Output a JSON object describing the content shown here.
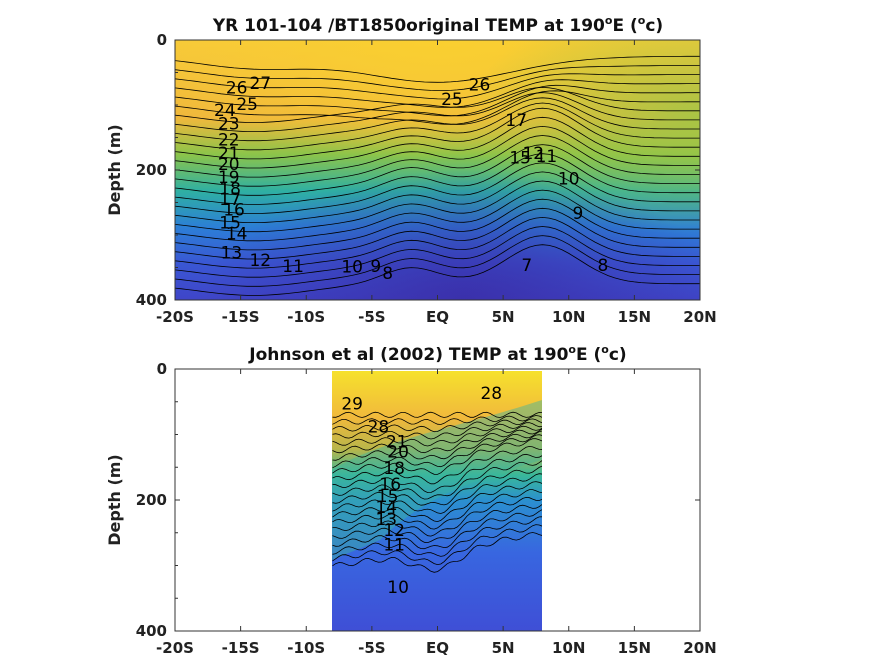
{
  "chart_data": [
    {
      "type": "contour",
      "title_pre": "YR 101-104 /BT1850original TEMP at 190",
      "title_sup": "o",
      "title_mid": "E (",
      "title_sup2": "o",
      "title_post": "c)",
      "xlabel": "",
      "ylabel": "Depth (m)",
      "xlim": [
        -20,
        20
      ],
      "ylim": [
        0,
        400
      ],
      "y_reversed": true,
      "x_ticks": [
        "-20S",
        "-15S",
        "-10S",
        "-5S",
        "EQ",
        "5N",
        "10N",
        "15N",
        "20N"
      ],
      "y_ticks": [
        "0",
        "200",
        "400"
      ],
      "contour_labels": [
        {
          "text": "27",
          "x": -13.5,
          "depth": 75
        },
        {
          "text": "26",
          "x": -15.3,
          "depth": 82
        },
        {
          "text": "25",
          "x": -14.5,
          "depth": 108
        },
        {
          "text": "24",
          "x": -16.2,
          "depth": 117
        },
        {
          "text": "23",
          "x": -15.9,
          "depth": 138
        },
        {
          "text": "22",
          "x": -15.9,
          "depth": 162
        },
        {
          "text": "21",
          "x": -15.9,
          "depth": 183
        },
        {
          "text": "20",
          "x": -15.9,
          "depth": 200
        },
        {
          "text": "19",
          "x": -15.9,
          "depth": 220
        },
        {
          "text": "18",
          "x": -15.8,
          "depth": 238
        },
        {
          "text": "17",
          "x": -15.8,
          "depth": 254
        },
        {
          "text": "16",
          "x": -15.5,
          "depth": 270
        },
        {
          "text": "15",
          "x": -15.8,
          "depth": 290
        },
        {
          "text": "14",
          "x": -15.3,
          "depth": 307
        },
        {
          "text": "13",
          "x": -15.7,
          "depth": 336
        },
        {
          "text": "12",
          "x": -13.5,
          "depth": 348
        },
        {
          "text": "11",
          "x": -11.0,
          "depth": 357
        },
        {
          "text": "10",
          "x": -6.5,
          "depth": 358
        },
        {
          "text": "9",
          "x": -4.7,
          "depth": 357
        },
        {
          "text": "8",
          "x": -3.8,
          "depth": 368
        },
        {
          "text": "25",
          "x": 1.1,
          "depth": 100
        },
        {
          "text": "26",
          "x": 3.2,
          "depth": 78
        },
        {
          "text": "17",
          "x": 6.0,
          "depth": 132
        },
        {
          "text": "15",
          "x": 6.3,
          "depth": 190
        },
        {
          "text": "12",
          "x": 7.3,
          "depth": 183
        },
        {
          "text": "11",
          "x": 8.3,
          "depth": 188
        },
        {
          "text": "10",
          "x": 10.0,
          "depth": 222
        },
        {
          "text": "9",
          "x": 10.7,
          "depth": 275
        },
        {
          "text": "8",
          "x": 12.6,
          "depth": 355
        },
        {
          "text": "7",
          "x": 6.8,
          "depth": 355
        }
      ]
    },
    {
      "type": "contour",
      "title_pre": "Johnson et al (2002) TEMP at 190",
      "title_sup": "o",
      "title_mid": "E (",
      "title_sup2": "o",
      "title_post": "c)",
      "xlabel": "",
      "ylabel": "Depth (m)",
      "xlim": [
        -20,
        20
      ],
      "ylim": [
        0,
        400
      ],
      "y_reversed": true,
      "data_xrange": [
        -8,
        8
      ],
      "x_ticks": [
        "-20S",
        "-15S",
        "-10S",
        "-5S",
        "EQ",
        "5N",
        "10N",
        "15N",
        "20N"
      ],
      "y_ticks": [
        "0",
        "200",
        "400"
      ],
      "contour_labels": [
        {
          "text": "29",
          "x": -6.5,
          "depth": 62
        },
        {
          "text": "28",
          "x": 4.1,
          "depth": 46
        },
        {
          "text": "28",
          "x": -4.5,
          "depth": 97
        },
        {
          "text": "21",
          "x": -3.1,
          "depth": 120
        },
        {
          "text": "20",
          "x": -3.0,
          "depth": 135
        },
        {
          "text": "18",
          "x": -3.3,
          "depth": 160
        },
        {
          "text": "16",
          "x": -3.6,
          "depth": 185
        },
        {
          "text": "15",
          "x": -3.8,
          "depth": 203
        },
        {
          "text": "14",
          "x": -3.9,
          "depth": 220
        },
        {
          "text": "13",
          "x": -3.9,
          "depth": 238
        },
        {
          "text": "12",
          "x": -3.3,
          "depth": 255
        },
        {
          "text": "11",
          "x": -3.3,
          "depth": 277
        },
        {
          "text": "10",
          "x": -3.0,
          "depth": 342
        }
      ]
    }
  ]
}
